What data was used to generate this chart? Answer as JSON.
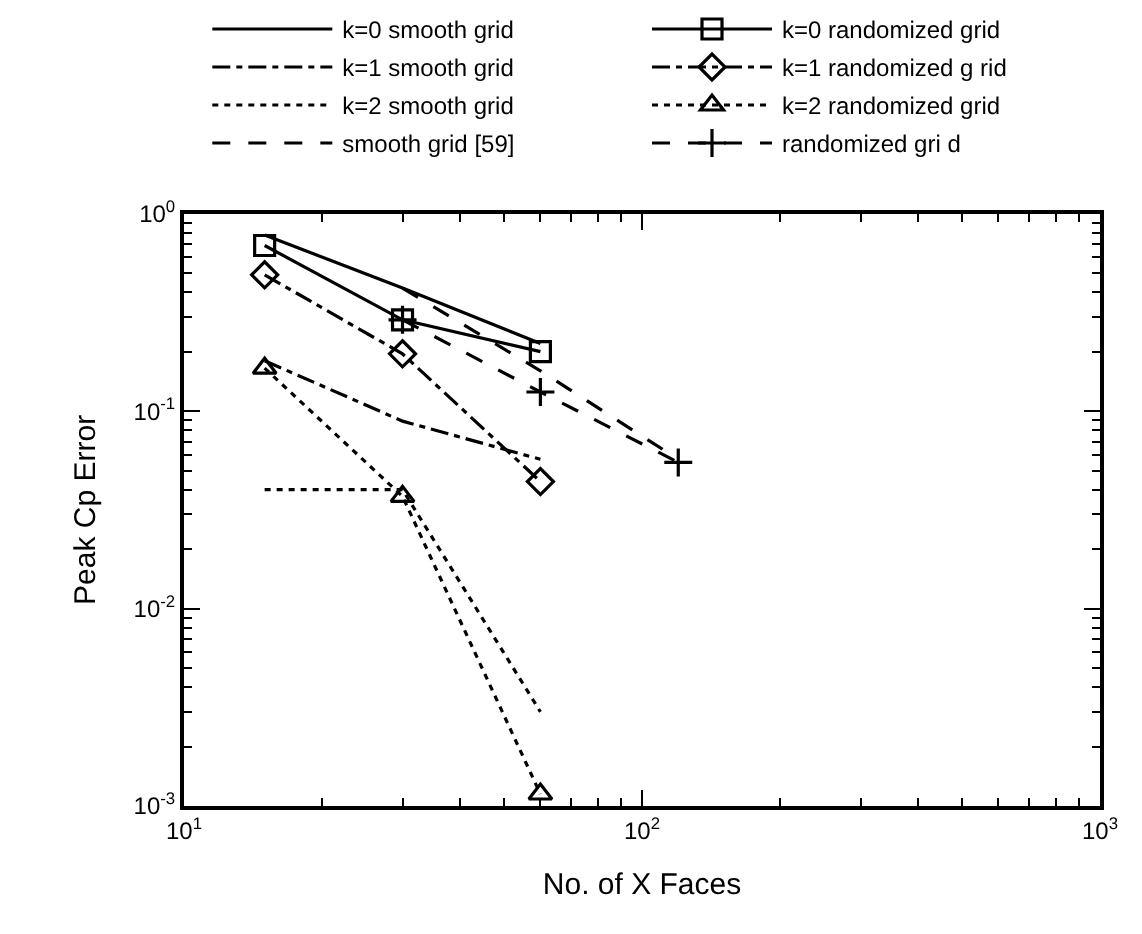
{
  "chart_data": {
    "type": "line",
    "xlabel": "No. of X Faces",
    "ylabel": "Peak Cp Error",
    "log": "xy",
    "legend": "top",
    "xlim": [
      10,
      1000
    ],
    "ylim": [
      0.001,
      1
    ],
    "xticks": [
      {
        "value": 10,
        "label": "10$^{1}$"
      },
      {
        "value": 100,
        "label": "10$^{2}$"
      },
      {
        "value": 1000,
        "label": "10$^{3}$"
      }
    ],
    "yticks": [
      {
        "value": 0.001,
        "label": "10$^{-3}$"
      },
      {
        "value": 0.01,
        "label": "10$^{-2}$"
      },
      {
        "value": 0.1,
        "label": "10$^{-1}$"
      },
      {
        "value": 1,
        "label": "10$^{0}$"
      }
    ],
    "series": [
      {
        "name": "k=0 smooth grid",
        "color": "#000000",
        "line_style": "solid",
        "marker": "none",
        "x": [
          15,
          30,
          60
        ],
        "values": [
          0.78,
          0.42,
          0.22
        ]
      },
      {
        "name": "k=1 smooth grid",
        "color": "#000000",
        "line_style": "dashdot",
        "marker": "none",
        "x": [
          15,
          30,
          60
        ],
        "values": [
          0.18,
          0.089,
          0.057
        ]
      },
      {
        "name": "k=2 smooth grid",
        "color": "#000000",
        "line_style": "dotted",
        "marker": "none",
        "x": [
          15,
          30,
          60
        ],
        "values": [
          0.04,
          0.04,
          0.003
        ]
      },
      {
        "name": "smooth grid [59]",
        "color": "#000000",
        "line_style": "dashed",
        "marker": "none",
        "x": [
          30,
          60,
          120
        ],
        "values": [
          0.42,
          0.16,
          0.057
        ]
      },
      {
        "name": "k=0 randomized grid",
        "color": "#000000",
        "line_style": "solid",
        "marker": "square",
        "x": [
          15,
          30,
          60
        ],
        "values": [
          0.69,
          0.29,
          0.2
        ]
      },
      {
        "name": "k=1 randomized g rid",
        "color": "#000000",
        "line_style": "dashdot",
        "marker": "diamond",
        "x": [
          15,
          30,
          60
        ],
        "values": [
          0.49,
          0.195,
          0.044
        ]
      },
      {
        "name": "k=2 randomized grid",
        "color": "#000000",
        "line_style": "dotted",
        "marker": "triangle",
        "x": [
          15,
          30,
          60
        ],
        "values": [
          0.165,
          0.037,
          0.00115
        ]
      },
      {
        "name": "randomized gri d",
        "color": "#000000",
        "line_style": "dashed",
        "marker": "cross",
        "x": [
          30,
          60,
          120
        ],
        "values": [
          0.29,
          0.125,
          0.055
        ]
      }
    ]
  }
}
